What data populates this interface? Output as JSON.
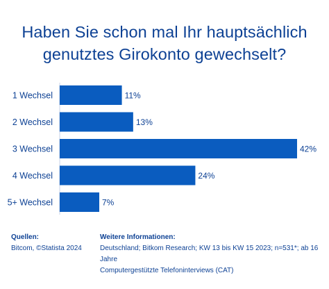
{
  "title_line1": "Haben Sie schon mal Ihr hauptsächlich",
  "title_line2": "genutztes Girokonto gewechselt?",
  "chart_data": {
    "type": "bar",
    "orientation": "horizontal",
    "categories": [
      "1 Wechsel",
      "2 Wechsel",
      "3 Wechsel",
      "4 Wechsel",
      "5+ Wechsel"
    ],
    "values": [
      11,
      13,
      42,
      24,
      7
    ],
    "value_labels": [
      "11%",
      "13%",
      "42%",
      "24%",
      "7%"
    ],
    "unit": "%",
    "xlim": [
      0,
      42
    ],
    "grid": false,
    "bar_color": "#0a5cbf"
  },
  "footer": {
    "sources_heading": "Quellen:",
    "sources_text": "Bitcom, ©Statista 2024",
    "info_heading": "Weitere Informationen:",
    "info_line1": "Deutschland; Bitkom Research; KW 13 bis KW 15 2023; n=531*; ab 16 Jahre",
    "info_line2": "Computergestützte Telefoninterviews (CAT)"
  }
}
